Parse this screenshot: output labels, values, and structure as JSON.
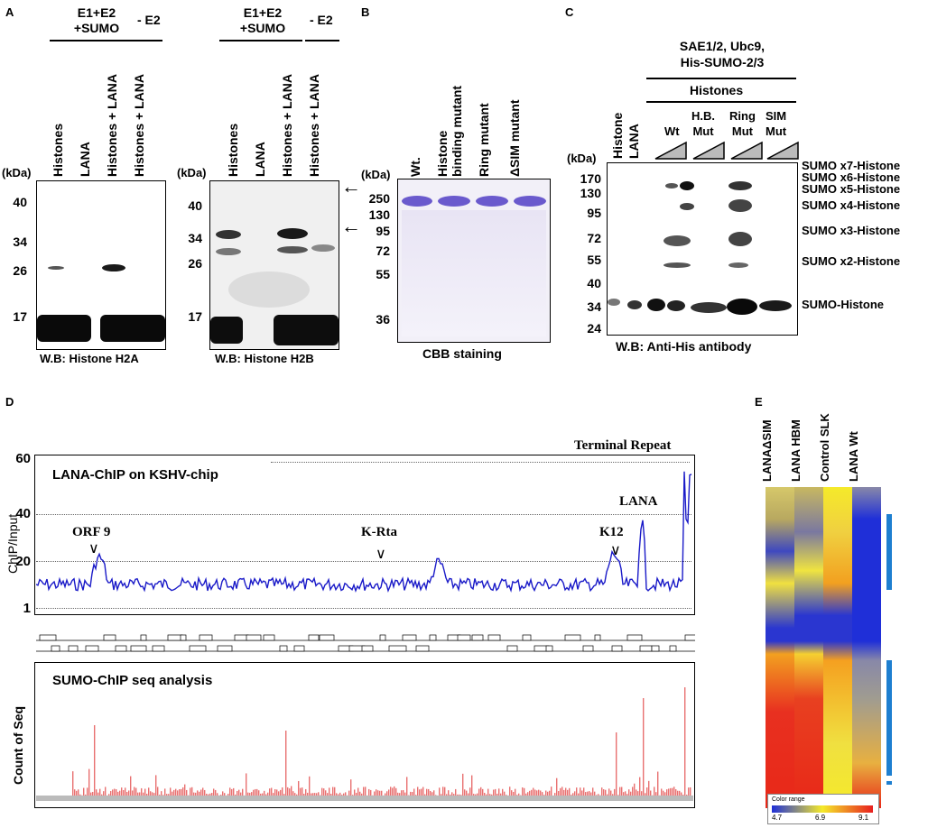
{
  "panels": {
    "a": "A",
    "b": "B",
    "c": "C",
    "d": "D",
    "e": "E"
  },
  "panelA": {
    "blot1": {
      "header_group": "E1+E2\n+SUMO",
      "header_group_line1": "E1+E2",
      "header_group_line2": "+SUMO",
      "header_minus": "- E2",
      "lanes": [
        "Histones",
        "LANA",
        "Histones + LANA",
        "Histones + LANA"
      ],
      "kda_label": "(kDa)",
      "markers": [
        "40",
        "34",
        "26",
        "17"
      ],
      "caption": "W.B: Histone H2A"
    },
    "blot2": {
      "header_group_line1": "E1+E2",
      "header_group_line2": "+SUMO",
      "header_minus": "- E2",
      "lanes": [
        "Histones",
        "LANA",
        "Histones + LANA",
        "Histones + LANA"
      ],
      "kda_label": "(kDa)",
      "markers": [
        "40",
        "34",
        "26",
        "17"
      ],
      "caption": "W.B: Histone H2B"
    }
  },
  "panelB": {
    "lanes": [
      "Wt.",
      "Histone",
      "binding mutant",
      "Ring mutant",
      "ΔSIM mutant"
    ],
    "kda_label": "(kDa)",
    "markers": [
      "250",
      "130",
      "95",
      "72",
      "55",
      "36"
    ],
    "caption": "CBB staining"
  },
  "panelC": {
    "header_line1": "SAE1/2, Ubc9,",
    "header_line2": "His-SUMO-2/3",
    "histones_header": "Histones",
    "lanes_left": [
      "Histone",
      "LANA"
    ],
    "groups": [
      {
        "line1": "",
        "line2": "Wt"
      },
      {
        "line1": "H.B.",
        "line2": "Mut"
      },
      {
        "line1": "Ring",
        "line2": "Mut"
      },
      {
        "line1": "SIM",
        "line2": "Mut"
      }
    ],
    "kda_label": "(kDa)",
    "markers": [
      "170",
      "130",
      "95",
      "72",
      "55",
      "40",
      "34",
      "24"
    ],
    "band_labels": [
      "SUMO x7-Histone",
      "SUMO x6-Histone",
      "SUMO x5-Histone",
      "SUMO x4-Histone",
      "SUMO x3-Histone",
      "SUMO x2-Histone",
      "SUMO-Histone"
    ],
    "caption": "W.B: Anti-His antibody"
  },
  "panelD": {
    "top_title": "LANA-ChIP on KSHV-chip",
    "terminal_repeat": "Terminal Repeat",
    "ylabel_top": "ChIP/Input",
    "yticks": [
      "60",
      "40",
      "20",
      "1"
    ],
    "annotations": [
      "ORF 9",
      "K-Rta",
      "K12",
      "LANA"
    ],
    "bottom_title": "SUMO-ChIP seq analysis",
    "ylabel_bottom": "Count of Seq"
  },
  "panelE": {
    "columns": [
      "LANAΔSIM",
      "LANA HBM",
      "Control SLK",
      "LANA Wt"
    ],
    "legend_title": "Color range",
    "legend_ticks": [
      "4.7",
      "6.9",
      "9.1"
    ]
  },
  "colors": {
    "band": "#1a1a1a",
    "cbb": "#6a5acd",
    "chip_line": "#1a1ac8",
    "seq_bar": "#e87070",
    "heat_blue": "#1f2fd8",
    "heat_yellow": "#f5ea2a",
    "heat_red": "#e81f1f",
    "sidebar": "#1e7fd0"
  }
}
